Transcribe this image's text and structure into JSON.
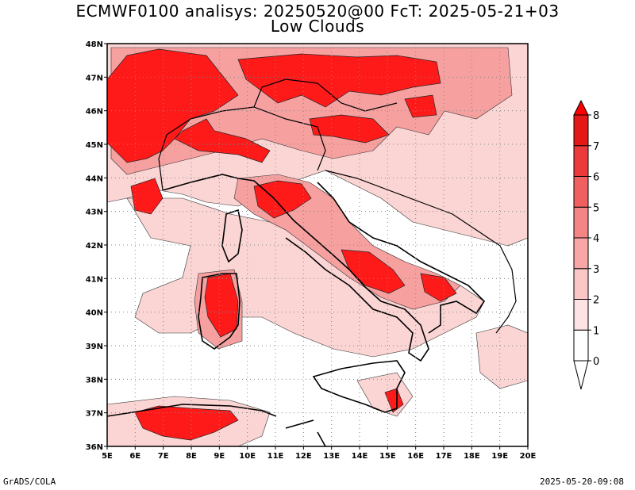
{
  "title": {
    "line1": "ECMWF0100 analisys: 20250520@00 FcT: 2025-05-21+03",
    "line2": "Low Clouds"
  },
  "footer": {
    "left": "GrADS/COLA",
    "right": "2025-05-20-09:08"
  },
  "map": {
    "lon_labels": [
      "5E",
      "6E",
      "7E",
      "8E",
      "9E",
      "10E",
      "11E",
      "12E",
      "13E",
      "14E",
      "15E",
      "16E",
      "17E",
      "18E",
      "19E",
      "20E"
    ],
    "lat_labels": [
      "48N",
      "47N",
      "46N",
      "45N",
      "44N",
      "43N",
      "42N",
      "41N",
      "40N",
      "39N",
      "38N",
      "37N",
      "36N"
    ],
    "lon_range": [
      5,
      20
    ],
    "lat_range": [
      36,
      48
    ],
    "grid": "dotted",
    "colorbar": {
      "labels": [
        "0",
        "1",
        "2",
        "3",
        "4",
        "5",
        "6",
        "7",
        "8"
      ],
      "colors": [
        "#ffffff",
        "#fde3e3",
        "#fbc6c6",
        "#f8a6a6",
        "#f48585",
        "#f06060",
        "#ec3a3a",
        "#e51818",
        "#ff0000"
      ]
    }
  }
}
